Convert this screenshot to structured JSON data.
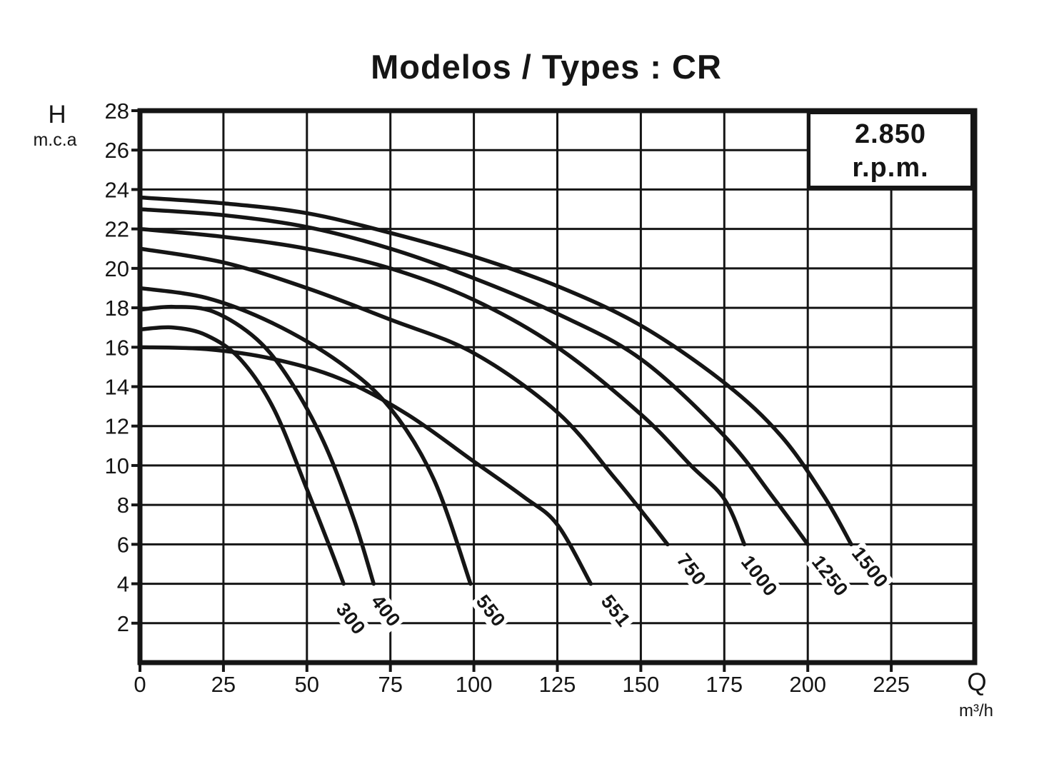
{
  "title": "Modelos / Types : CR",
  "rpm_box": {
    "line1": "2.850",
    "line2": "r.p.m."
  },
  "y_axis": {
    "label": "H",
    "unit": "m.c.a",
    "ticks": [
      28,
      26,
      24,
      22,
      20,
      18,
      16,
      14,
      12,
      10,
      8,
      6,
      4,
      2
    ]
  },
  "x_axis": {
    "label": "Q",
    "unit": "m³/h",
    "ticks": [
      0,
      25,
      50,
      75,
      100,
      125,
      150,
      175,
      200,
      225
    ]
  },
  "colors": {
    "line": "#151515",
    "background": "#ffffff"
  },
  "chart_data": {
    "type": "line",
    "title": "Modelos / Types : CR",
    "annotation": "2.850 r.p.m.",
    "xlabel": "Q (m³/h)",
    "ylabel": "H (m.c.a)",
    "xlim": [
      0,
      250
    ],
    "ylim": [
      0,
      28
    ],
    "x_grid_step": 25,
    "y_grid_step": 2,
    "grid": true,
    "legend": "labels at curve ends, rotated",
    "series": [
      {
        "name": "300",
        "label_pos": [
          63,
          2.2
        ],
        "points": [
          [
            0,
            16.9
          ],
          [
            10,
            17.0
          ],
          [
            20,
            16.6
          ],
          [
            30,
            15.4
          ],
          [
            40,
            12.9
          ],
          [
            50,
            8.8
          ],
          [
            57,
            5.8
          ],
          [
            61,
            4.0
          ]
        ]
      },
      {
        "name": "400",
        "label_pos": [
          73.5,
          2.6
        ],
        "points": [
          [
            0,
            17.9
          ],
          [
            10,
            18.05
          ],
          [
            22,
            17.8
          ],
          [
            35,
            16.4
          ],
          [
            45,
            14.3
          ],
          [
            55,
            11.2
          ],
          [
            64,
            7.3
          ],
          [
            70,
            4.0
          ]
        ]
      },
      {
        "name": "550",
        "label_pos": [
          105,
          2.6
        ],
        "points": [
          [
            0,
            19.0
          ],
          [
            20,
            18.5
          ],
          [
            40,
            17.2
          ],
          [
            60,
            15.2
          ],
          [
            75,
            12.9
          ],
          [
            88,
            9.3
          ],
          [
            99,
            4.0
          ]
        ]
      },
      {
        "name": "551",
        "label_pos": [
          142.5,
          2.6
        ],
        "points": [
          [
            0,
            16.0
          ],
          [
            20,
            15.9
          ],
          [
            40,
            15.4
          ],
          [
            60,
            14.4
          ],
          [
            80,
            12.6
          ],
          [
            100,
            10.2
          ],
          [
            115,
            8.4
          ],
          [
            125,
            7.0
          ],
          [
            135,
            4.0
          ]
        ]
      },
      {
        "name": "750",
        "label_pos": [
          165,
          4.7
        ],
        "points": [
          [
            0,
            21.0
          ],
          [
            25,
            20.3
          ],
          [
            50,
            19.0
          ],
          [
            75,
            17.4
          ],
          [
            100,
            15.7
          ],
          [
            125,
            12.7
          ],
          [
            142,
            9.4
          ],
          [
            152,
            7.3
          ],
          [
            158,
            6.0
          ]
        ]
      },
      {
        "name": "1000",
        "label_pos": [
          185.5,
          4.4
        ],
        "points": [
          [
            0,
            22.0
          ],
          [
            25,
            21.6
          ],
          [
            50,
            21.0
          ],
          [
            75,
            20.0
          ],
          [
            100,
            18.4
          ],
          [
            125,
            16.0
          ],
          [
            150,
            12.6
          ],
          [
            165,
            10.0
          ],
          [
            175,
            8.3
          ],
          [
            181,
            6.0
          ]
        ]
      },
      {
        "name": "1250",
        "label_pos": [
          206.5,
          4.4
        ],
        "points": [
          [
            0,
            23.0
          ],
          [
            25,
            22.7
          ],
          [
            50,
            22.1
          ],
          [
            75,
            21.0
          ],
          [
            100,
            19.5
          ],
          [
            125,
            17.7
          ],
          [
            150,
            15.4
          ],
          [
            175,
            11.5
          ],
          [
            190,
            8.3
          ],
          [
            200,
            6.0
          ]
        ]
      },
      {
        "name": "1500",
        "label_pos": [
          218.5,
          4.8
        ],
        "points": [
          [
            0,
            23.6
          ],
          [
            25,
            23.3
          ],
          [
            50,
            22.8
          ],
          [
            75,
            21.8
          ],
          [
            100,
            20.6
          ],
          [
            125,
            19.1
          ],
          [
            150,
            17.1
          ],
          [
            175,
            14.2
          ],
          [
            192,
            11.5
          ],
          [
            205,
            8.4
          ],
          [
            213,
            6.0
          ]
        ]
      }
    ]
  }
}
